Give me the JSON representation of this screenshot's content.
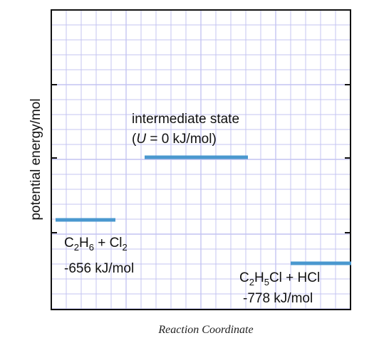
{
  "colors": {
    "grid": "#c4c4f2",
    "frame": "#111111",
    "level": "#4a98cf",
    "text": "#111111"
  },
  "diagram": {
    "y_axis_label": "potential energy/mol",
    "x_axis_label": "Reaction Coordinate",
    "levels": [
      {
        "name": "reactants",
        "energy_kj_per_mol": -656,
        "formula_parts": [
          {
            "t": "C",
            "sub": false
          },
          {
            "t": "2",
            "sub": true
          },
          {
            "t": "H",
            "sub": false
          },
          {
            "t": "6",
            "sub": true
          },
          {
            "t": " + Cl",
            "sub": false
          },
          {
            "t": "2",
            "sub": true
          }
        ],
        "value_label": "-656 kJ/mol"
      },
      {
        "name": "intermediate",
        "energy_kj_per_mol": 0,
        "title": "intermediate state",
        "value_parts": [
          {
            "t": "(",
            "italic": false
          },
          {
            "t": "U",
            "italic": true
          },
          {
            "t": " = 0 kJ/mol)",
            "italic": false
          }
        ]
      },
      {
        "name": "products",
        "energy_kj_per_mol": -778,
        "formula_parts": [
          {
            "t": "C",
            "sub": false
          },
          {
            "t": "2",
            "sub": true
          },
          {
            "t": "H",
            "sub": false
          },
          {
            "t": "5",
            "sub": true
          },
          {
            "t": "Cl + HCl",
            "sub": false
          }
        ],
        "value_label": "-778 kJ/mol"
      }
    ]
  }
}
